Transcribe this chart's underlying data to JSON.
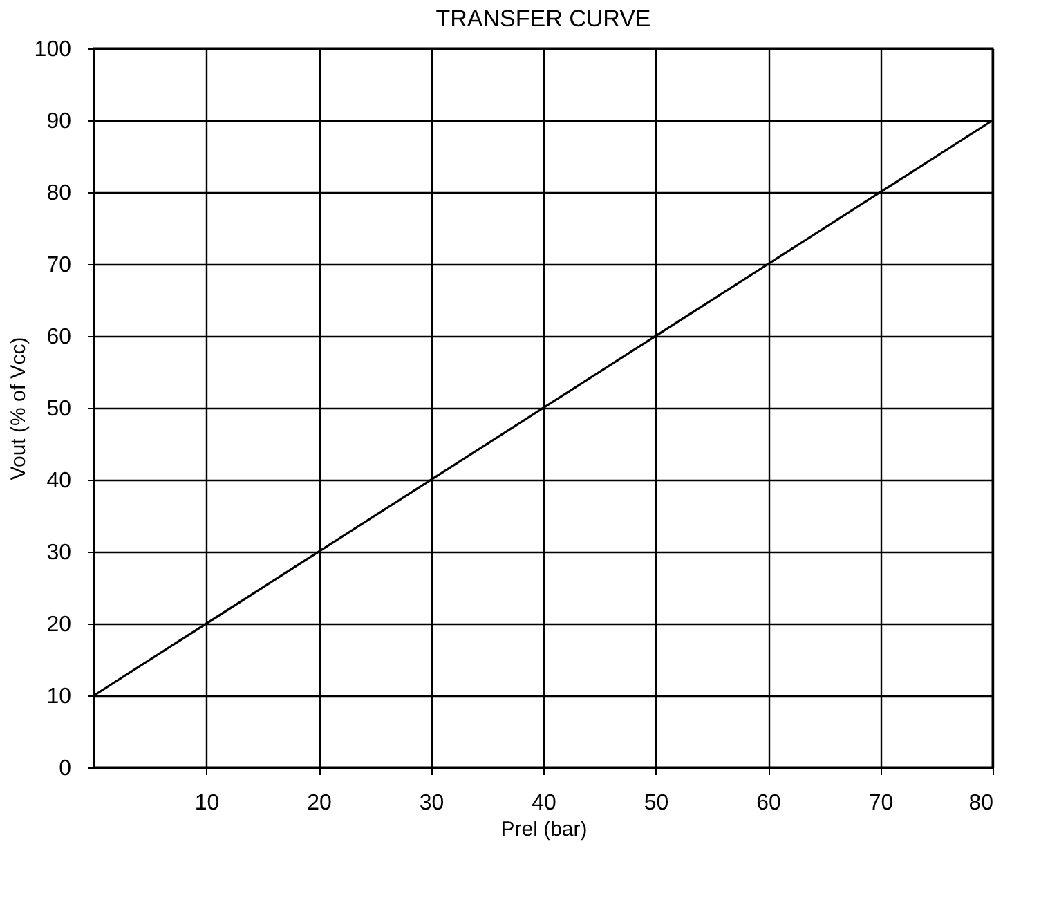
{
  "chart_data": {
    "type": "line",
    "title": "TRANSFER CURVE",
    "xlabel": "Prel  (bar)",
    "ylabel": "Vout (% of Vcc)",
    "x": [
      0,
      80
    ],
    "series": [
      {
        "color": "#000000",
        "values": [
          10,
          90
        ]
      }
    ],
    "xlim": [
      0,
      80
    ],
    "ylim": [
      0,
      100
    ],
    "xticks": [
      10,
      20,
      30,
      40,
      50,
      60,
      70,
      80
    ],
    "yticks": [
      0,
      10,
      20,
      30,
      40,
      50,
      60,
      70,
      80,
      90,
      100
    ],
    "grid": true,
    "marker": "none",
    "line_style": "solid"
  }
}
